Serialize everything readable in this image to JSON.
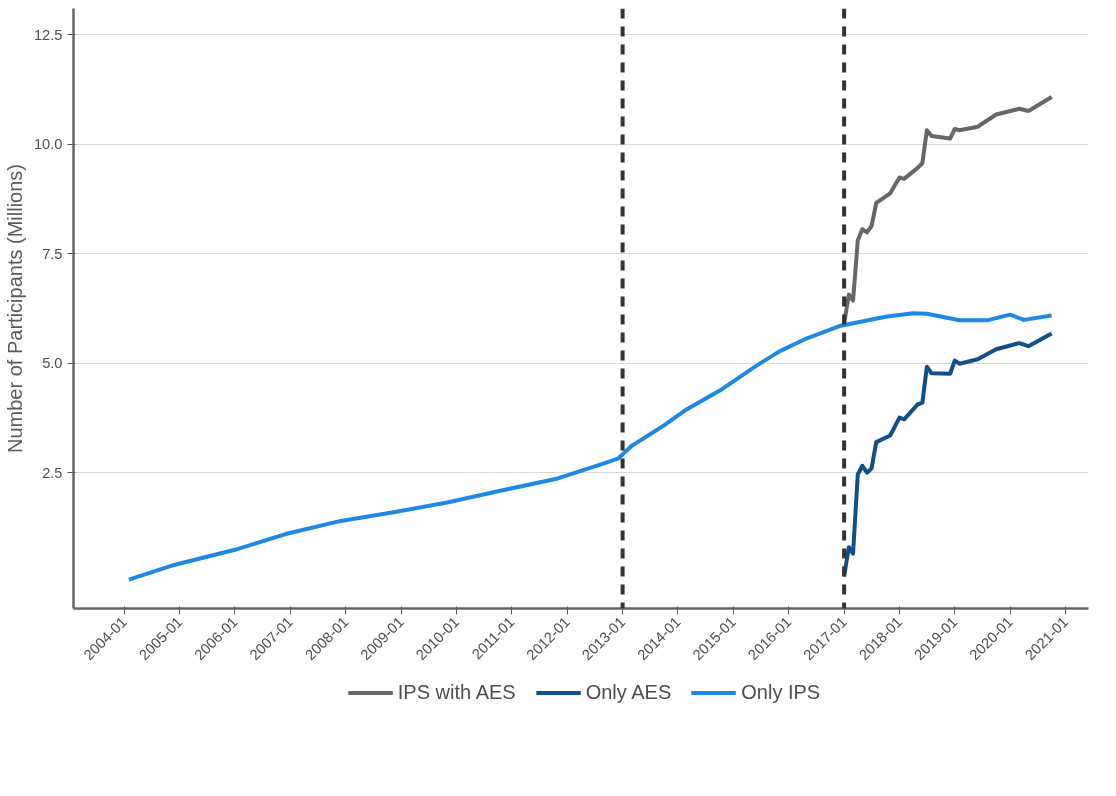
{
  "chart_data": {
    "type": "line",
    "ylabel": "Number of Participants (Millions)",
    "xlim": [
      "2003-02",
      "2021-06"
    ],
    "ylim": [
      -0.6,
      13.1
    ],
    "xticks": [
      "2004-01",
      "2005-01",
      "2006-01",
      "2007-01",
      "2008-01",
      "2009-01",
      "2010-01",
      "2011-01",
      "2012-01",
      "2013-01",
      "2014-01",
      "2015-01",
      "2016-01",
      "2017-01",
      "2018-01",
      "2019-01",
      "2020-01",
      "2021-01"
    ],
    "yticks": [
      2.5,
      {
        "value": 5,
        "label": "5.0"
      },
      {
        "value": 7.5,
        "label": "7.5"
      },
      {
        "value": 10,
        "label": "10.0"
      },
      12.5
    ],
    "grid": "y",
    "legend": "bottom",
    "line_style": "solid",
    "ref_lines": [
      {
        "axis": "x",
        "value": "2013-01",
        "color": "#333333",
        "line_style": "dashed"
      },
      {
        "axis": "x",
        "value": "2017-01",
        "color": "#333333",
        "line_style": "dashed"
      }
    ],
    "series": [
      {
        "name": "IPS with AES",
        "color": "#666666",
        "x": [
          "2017-01",
          "2017-02",
          "2017-03",
          "2017-04",
          "2017-05",
          "2017-06",
          "2017-07",
          "2017-08",
          "2017-11",
          "2018-01",
          "2018-02",
          "2018-05",
          "2018-06",
          "2018-07",
          "2018-08",
          "2018-12",
          "2019-01",
          "2019-02",
          "2019-06",
          "2019-10",
          "2020-03",
          "2020-05",
          "2020-10"
        ],
        "values": [
          5.9,
          6.57,
          6.43,
          7.8,
          8.06,
          7.99,
          8.13,
          8.66,
          8.88,
          9.24,
          9.21,
          9.46,
          9.57,
          10.32,
          10.19,
          10.13,
          10.35,
          10.32,
          10.4,
          10.68,
          10.81,
          10.76,
          11.08
        ]
      },
      {
        "name": "Only AES",
        "color": "#114f8a",
        "x": [
          "2017-01",
          "2017-02",
          "2017-03",
          "2017-04",
          "2017-05",
          "2017-06",
          "2017-07",
          "2017-08",
          "2017-11",
          "2018-01",
          "2018-02",
          "2018-05",
          "2018-06",
          "2018-07",
          "2018-08",
          "2018-12",
          "2019-01",
          "2019-02",
          "2019-06",
          "2019-10",
          "2020-03",
          "2020-05",
          "2020-10"
        ],
        "values": [
          0.13,
          0.8,
          0.65,
          2.46,
          2.66,
          2.5,
          2.6,
          3.2,
          3.35,
          3.76,
          3.72,
          4.06,
          4.1,
          4.92,
          4.77,
          4.76,
          5.06,
          4.99,
          5.09,
          5.32,
          5.46,
          5.39,
          5.68
        ]
      },
      {
        "name": "Only IPS",
        "color": "#1e88e5",
        "x": [
          "2004-02",
          "2004-12",
          "2006-01",
          "2006-12",
          "2007-12",
          "2008-12",
          "2009-11",
          "2010-11",
          "2011-11",
          "2012-08",
          "2012-12",
          "2013-03",
          "2013-10",
          "2014-03",
          "2014-10",
          "2015-06",
          "2015-11",
          "2016-05",
          "2016-12",
          "2017-10",
          "2018-04",
          "2018-07",
          "2019-02",
          "2019-08",
          "2020-01",
          "2020-04",
          "2020-10"
        ],
        "values": [
          0.06,
          0.4,
          0.74,
          1.1,
          1.4,
          1.61,
          1.82,
          2.1,
          2.37,
          2.68,
          2.82,
          3.11,
          3.58,
          3.95,
          4.37,
          4.94,
          5.27,
          5.57,
          5.85,
          6.06,
          6.14,
          6.13,
          5.98,
          5.98,
          6.11,
          5.99,
          6.09
        ]
      }
    ]
  }
}
